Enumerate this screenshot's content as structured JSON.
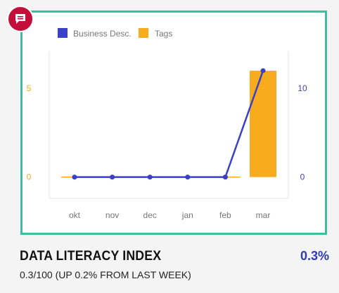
{
  "widget": {
    "title": "DATA LITERACY INDEX",
    "value": "0.3%",
    "subtitle": "0.3/100 (UP 0.2% FROM LAST WEEK)"
  },
  "colors": {
    "border": "#3cbf9f",
    "badge": "#c40f3a",
    "line_series": "#3a41c4",
    "bar_series": "#f8ab1c",
    "value_text": "#2e3bb5"
  },
  "icons": {
    "badge": "comment-icon"
  },
  "chart_data": {
    "type": "bar",
    "categories": [
      "okt",
      "nov",
      "dec",
      "jan",
      "feb",
      "mar"
    ],
    "series": [
      {
        "name": "Business Desc.",
        "type": "line",
        "axis": "right",
        "color": "#3a41c4",
        "values": [
          0,
          0,
          0,
          0,
          0,
          12
        ]
      },
      {
        "name": "Tags",
        "type": "bar",
        "axis": "left",
        "color": "#f8ab1c",
        "values": [
          0,
          0,
          0,
          0,
          0,
          6
        ]
      }
    ],
    "left_axis": {
      "ticks": [
        0,
        5
      ],
      "range": [
        -1.2,
        7.1
      ],
      "color": "#f8ab1c"
    },
    "right_axis": {
      "ticks": [
        0,
        10
      ],
      "range": [
        -2.4,
        14.2
      ],
      "color": "#3a41c4"
    },
    "legend": "top-left",
    "grid": false
  }
}
